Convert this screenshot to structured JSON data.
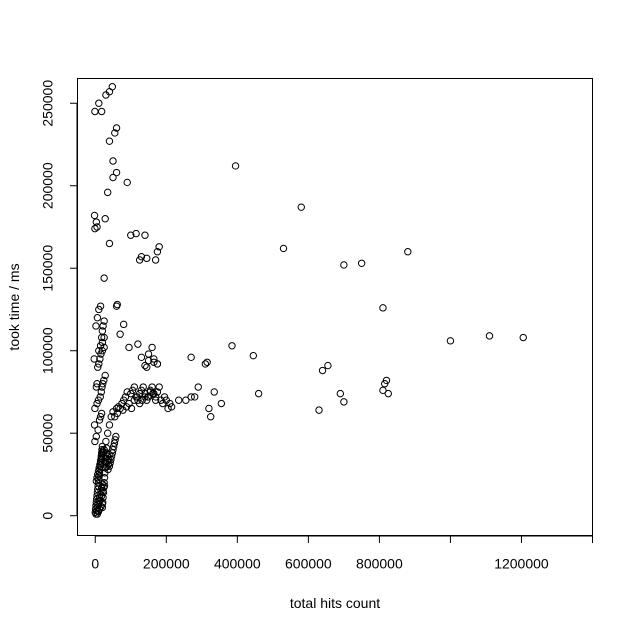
{
  "chart_data": {
    "type": "scatter",
    "title": "",
    "xlabel": "total hits count",
    "ylabel": "took time / ms",
    "xlim": [
      -50000,
      1400000
    ],
    "ylim": [
      -12000,
      265000
    ],
    "x_ticks": [
      0,
      200000,
      400000,
      600000,
      800000,
      1000000,
      1200000,
      1400000
    ],
    "x_tick_labels": [
      "0",
      "200000",
      "400000",
      "600000",
      "800000",
      "",
      "1200000",
      ""
    ],
    "y_ticks": [
      0,
      50000,
      100000,
      150000,
      200000,
      250000
    ],
    "y_tick_labels": [
      "0",
      "50000",
      "100000",
      "150000",
      "200000",
      "250000"
    ],
    "grid": false,
    "marker": "open-circle",
    "x": [
      0,
      1000,
      2000,
      3000,
      4000,
      5000,
      6000,
      7000,
      8000,
      9000,
      10000,
      11000,
      12000,
      13000,
      14000,
      15000,
      16000,
      17000,
      18000,
      19000,
      20000,
      21000,
      22000,
      23000,
      24000,
      25000,
      26000,
      27000,
      28000,
      29000,
      30000,
      31000,
      32000,
      33000,
      34000,
      35000,
      36000,
      37000,
      38000,
      39000,
      40000,
      42000,
      44000,
      46000,
      48000,
      50000,
      52000,
      54000,
      56000,
      58000,
      2000,
      4000,
      6000,
      8000,
      10000,
      12000,
      14000,
      16000,
      18000,
      20000,
      3000,
      5000,
      7000,
      9000,
      11000,
      13000,
      15000,
      17000,
      19000,
      21000,
      6000,
      9000,
      12000,
      16000,
      20000,
      8000,
      13000,
      18000,
      22000,
      26000,
      -2000,
      -1000,
      3000,
      8000,
      12000,
      15000,
      18000,
      20000,
      22000,
      25000,
      30000,
      35000,
      40000,
      45000,
      50000,
      -1000,
      5000,
      9000,
      14000,
      17000,
      19000,
      21000,
      24000,
      28000,
      3000,
      5000,
      7000,
      10000,
      13000,
      16000,
      20000,
      25000,
      -3000,
      2000,
      6000,
      10000,
      15000,
      20000,
      25000,
      10000,
      15000,
      18000,
      20000,
      22000,
      25000,
      -1000,
      3000,
      28000,
      40000,
      60000,
      62000,
      70000,
      80000,
      95000,
      120000,
      130000,
      140000,
      150000,
      165000,
      175000,
      -2000,
      5000,
      25000,
      35000,
      50000,
      60000,
      -1000,
      30000,
      40000,
      48000,
      50000,
      10000,
      18000,
      40000,
      55000,
      60000,
      90000,
      60000,
      65000,
      75000,
      80000,
      85000,
      90000,
      100000,
      105000,
      110000,
      115000,
      120000,
      125000,
      130000,
      135000,
      140000,
      145000,
      150000,
      155000,
      160000,
      165000,
      170000,
      175000,
      180000,
      55000,
      62000,
      70000,
      78000,
      88000,
      95000,
      102000,
      110000,
      118000,
      125000,
      132000,
      140000,
      148000,
      155000,
      162000,
      170000,
      185000,
      190000,
      195000,
      200000,
      205000,
      210000,
      215000,
      235000,
      255000,
      270000,
      280000,
      290000,
      320000,
      335000,
      355000,
      325000,
      310000,
      270000,
      315000,
      385000,
      445000,
      460000,
      140000,
      145000,
      175000,
      180000,
      170000,
      160000,
      150000,
      100000,
      115000,
      125000,
      130000,
      145000,
      165000,
      175000,
      530000,
      580000,
      700000,
      750000,
      880000,
      395000,
      810000,
      640000,
      655000,
      630000,
      690000,
      700000,
      815000,
      820000,
      825000,
      810000,
      1000000,
      1110000,
      1205000
    ],
    "y": [
      2000,
      4000,
      6000,
      8000,
      10000,
      12000,
      14000,
      16000,
      18000,
      20000,
      22000,
      24000,
      26000,
      28000,
      30000,
      32000,
      34000,
      36000,
      38000,
      40000,
      5000,
      8000,
      11000,
      14000,
      17000,
      20000,
      23000,
      26000,
      29000,
      32000,
      35000,
      38000,
      41000,
      30000,
      33000,
      36000,
      28000,
      31000,
      34000,
      37000,
      30000,
      32000,
      34000,
      36000,
      38000,
      40000,
      42000,
      44000,
      46000,
      48000,
      1000,
      3000,
      5000,
      7000,
      9000,
      11000,
      13000,
      15000,
      17000,
      19000,
      21000,
      23000,
      25000,
      27000,
      29000,
      31000,
      33000,
      35000,
      37000,
      39000,
      1000,
      2500,
      4000,
      5500,
      7000,
      3000,
      9000,
      12000,
      15000,
      18000,
      55000,
      45000,
      48000,
      52000,
      58000,
      60000,
      62000,
      42000,
      38000,
      40000,
      45000,
      50000,
      55000,
      60000,
      63000,
      65000,
      68000,
      70000,
      72000,
      75000,
      78000,
      80000,
      82000,
      85000,
      78000,
      80000,
      90000,
      92000,
      95000,
      98000,
      100000,
      102000,
      95000,
      115000,
      120000,
      125000,
      127000,
      105000,
      108000,
      100000,
      103000,
      108000,
      112000,
      115000,
      118000,
      174000,
      178000,
      180000,
      165000,
      127000,
      128000,
      110000,
      116000,
      102000,
      104000,
      96000,
      91000,
      94000,
      93000,
      92000,
      182000,
      175000,
      144000,
      196000,
      205000,
      208000,
      245000,
      255000,
      257000,
      260000,
      215000,
      250000,
      245000,
      227000,
      232000,
      235000,
      202000,
      65000,
      66000,
      68000,
      70000,
      72000,
      75000,
      74000,
      76000,
      78000,
      72000,
      70000,
      74000,
      76000,
      78000,
      72000,
      70000,
      72000,
      75000,
      78000,
      74000,
      70000,
      75000,
      78000,
      60000,
      62000,
      65000,
      64000,
      66000,
      68000,
      65000,
      70000,
      72000,
      68000,
      70000,
      74000,
      72000,
      76000,
      74000,
      72000,
      70000,
      68000,
      72000,
      70000,
      65000,
      68000,
      66000,
      70000,
      70000,
      72000,
      72000,
      78000,
      65000,
      75000,
      68000,
      60000,
      92000,
      96000,
      93000,
      103000,
      97000,
      74000,
      170000,
      156000,
      160000,
      163000,
      155000,
      102000,
      98000,
      170000,
      171000,
      155000,
      157000,
      90000,
      95000,
      92000,
      162000,
      187000,
      152000,
      153000,
      160000,
      212000,
      126000,
      88000,
      91000,
      64000,
      74000,
      69000,
      80000,
      82000,
      74000,
      76000,
      106000,
      109000,
      108000
    ]
  }
}
